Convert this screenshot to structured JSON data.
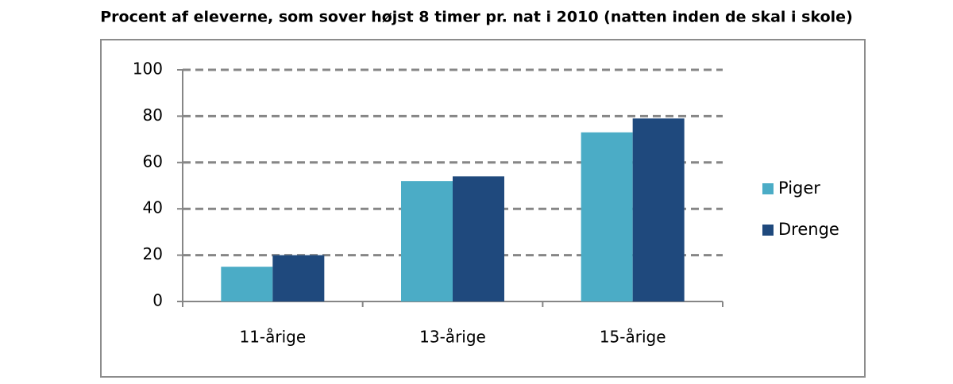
{
  "chart_data": {
    "type": "bar",
    "title": "Procent af eleverne, som sover højst 8 timer pr. nat i 2010 (natten inden de skal i skole)",
    "categories": [
      "11-årige",
      "13-årige",
      "15-årige"
    ],
    "series": [
      {
        "name": "Piger",
        "color": "#4bacc6",
        "values": [
          15,
          52,
          73
        ]
      },
      {
        "name": "Drenge",
        "color": "#1f497d",
        "values": [
          20,
          54,
          79
        ]
      }
    ],
    "ylim": [
      0,
      100
    ],
    "yticks": [
      0,
      20,
      40,
      60,
      80,
      100
    ],
    "grid": true,
    "legend": "right"
  }
}
